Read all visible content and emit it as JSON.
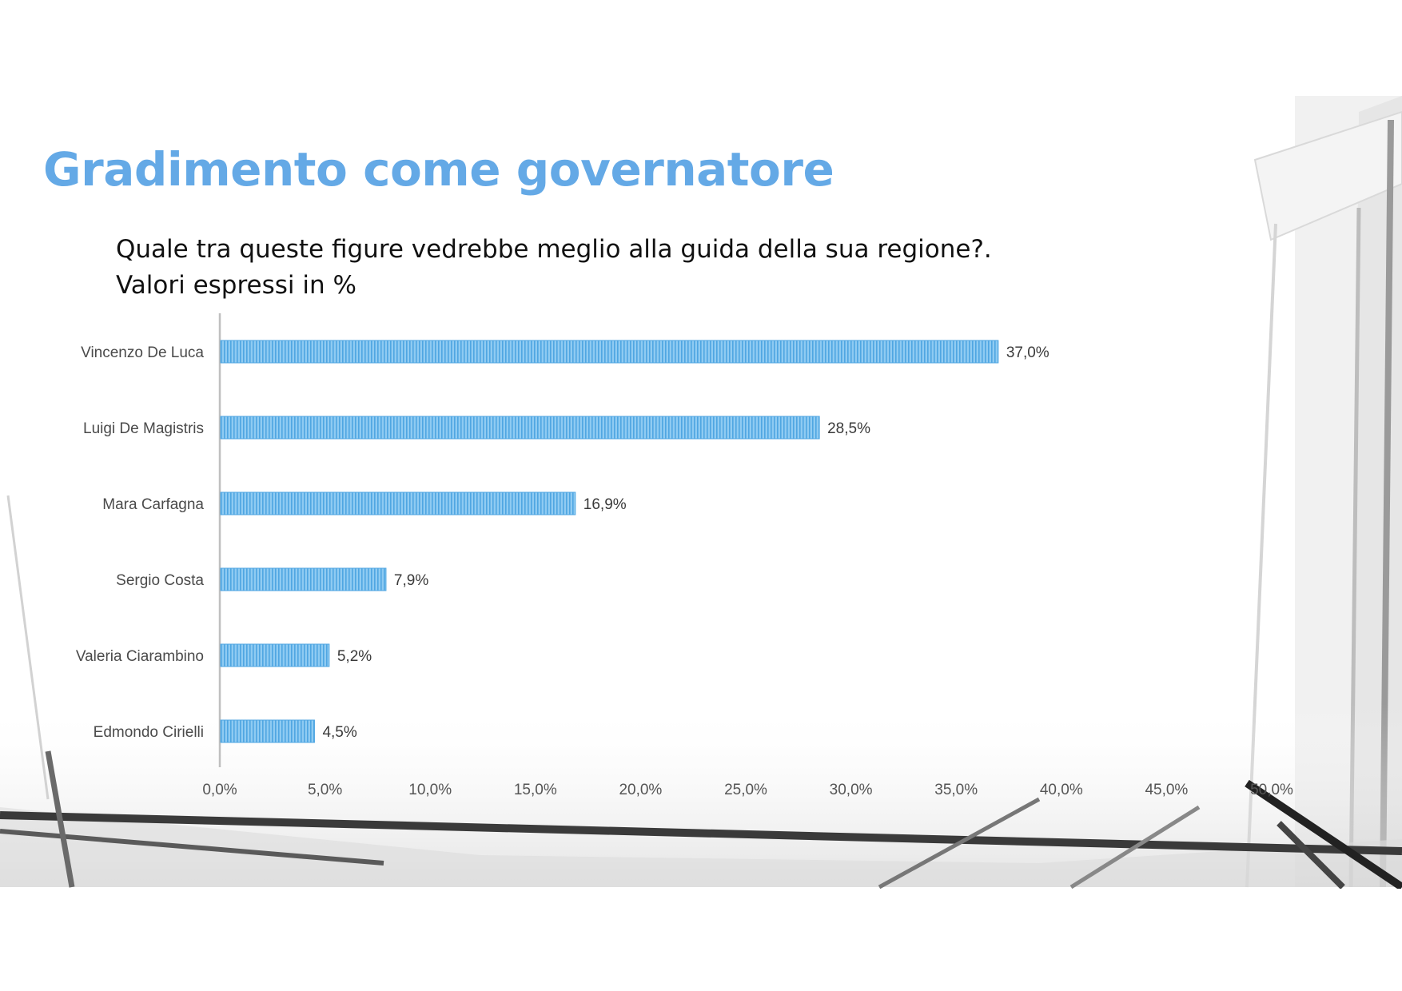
{
  "slide": {
    "title": "Gradimento come governatore",
    "subtitle_lines": [
      "Quale tra queste figure vedrebbe meglio alla guida della sua regione?.",
      "Valori espressi in %"
    ]
  },
  "colors": {
    "title": "#64a9e6",
    "bar": "#5aaee6",
    "axis": "#bfbfbf"
  },
  "chart_data": {
    "type": "bar",
    "orientation": "horizontal",
    "categories": [
      "Vincenzo De Luca",
      "Luigi De Magistris",
      "Mara Carfagna",
      "Sergio Costa",
      "Valeria Ciarambino",
      "Edmondo Cirielli"
    ],
    "values": [
      37.0,
      28.5,
      16.9,
      7.9,
      5.2,
      4.5
    ],
    "value_labels": [
      "37,0%",
      "28,5%",
      "16,9%",
      "7,9%",
      "5,2%",
      "4,5%"
    ],
    "xlim": [
      0,
      50
    ],
    "xticks": [
      "0,0%",
      "5,0%",
      "10,0%",
      "15,0%",
      "20,0%",
      "25,0%",
      "30,0%",
      "35,0%",
      "40,0%",
      "45,0%",
      "50,0%"
    ],
    "xlabel": "",
    "ylabel": "",
    "grid": false,
    "legend": "none"
  }
}
